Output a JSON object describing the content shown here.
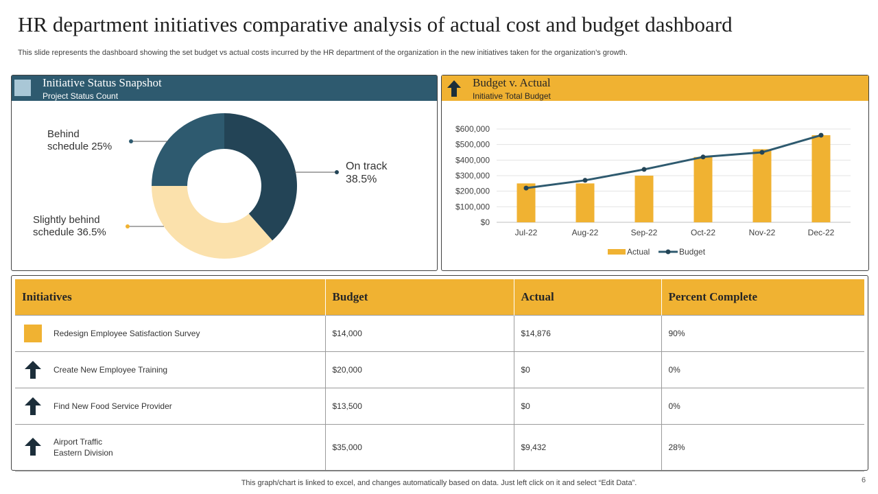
{
  "page": {
    "title": "HR department  initiatives  comparative  analysis  of actual cost and budget dashboard",
    "subtitle": "This slide represents the dashboard showing the set budget vs actual costs incurred by the HR department of the organization in the new initiatives taken for the organization’s growth.",
    "footer": "This graph/chart is linked to excel,  and changes automatically based on data. Just left click on it and select “Edit Data”.",
    "page_number": "6"
  },
  "left_panel": {
    "title": "Initiative  Status Snapshot",
    "subtitle": "Project Status Count",
    "labels": {
      "on_track_line1": "On track",
      "on_track_line2": "38.5%",
      "behind_line1": "Behind",
      "behind_line2": "schedule 25%",
      "slightly_line1": "Slightly behind",
      "slightly_line2": "schedule 36.5%"
    }
  },
  "right_panel": {
    "title": "Budget v. Actual",
    "subtitle": "Initiative Total Budget"
  },
  "colors": {
    "yellow": "#f0b232",
    "navy": "#234456",
    "teal": "#2e5a6f",
    "cream": "#fbe1ac",
    "dark_arrow": "#1c2e3a"
  },
  "chart_data": [
    {
      "type": "pie",
      "title": "Project Status Count",
      "categories": [
        "On track",
        "Slightly behind schedule",
        "Behind schedule"
      ],
      "values": [
        38.5,
        36.5,
        25
      ],
      "colors": [
        "#234456",
        "#fbe1ac",
        "#2e5a6f"
      ],
      "donut": true
    },
    {
      "type": "bar",
      "title": "Initiative Total Budget",
      "categories": [
        "Jul-22",
        "Aug-22",
        "Sep-22",
        "Oct-22",
        "Nov-22",
        "Dec-22"
      ],
      "series": [
        {
          "name": "Actual",
          "kind": "bar",
          "color": "#f0b232",
          "values": [
            250000,
            250000,
            300000,
            420000,
            470000,
            560000
          ]
        },
        {
          "name": "Budget",
          "kind": "line",
          "color": "#2e5a6f",
          "values": [
            220000,
            270000,
            340000,
            420000,
            450000,
            560000
          ]
        }
      ],
      "ylim": [
        0,
        600000
      ],
      "yticks": [
        0,
        100000,
        200000,
        300000,
        400000,
        500000,
        600000
      ],
      "ytick_labels": [
        "$0",
        "$100,000",
        "$200,000",
        "$300,000",
        "$400,000",
        "$500,000",
        "$600,000"
      ],
      "legend": "bottom",
      "grid": true
    }
  ],
  "table": {
    "headers": [
      "Initiatives",
      "Budget",
      "Actual",
      "Percent Complete"
    ],
    "rows": [
      {
        "icon": "square-icon",
        "initiative": [
          "Redesign  Employee Satisfaction Survey"
        ],
        "budget": "$14,000",
        "actual": "$14,876",
        "percent": "90%"
      },
      {
        "icon": "up-arrow-icon",
        "initiative": [
          "Create  New  Employee Training"
        ],
        "budget": "$20,000",
        "actual": "$0",
        "percent": "0%"
      },
      {
        "icon": "up-arrow-icon",
        "initiative": [
          "Find  New  Food  Service  Provider"
        ],
        "budget": "$13,500",
        "actual": "$0",
        "percent": "0%"
      },
      {
        "icon": "up-arrow-icon",
        "initiative": [
          "Airport  Traffic",
          "Eastern  Division"
        ],
        "budget": "$35,000",
        "actual": "$9,432",
        "percent": "28%"
      }
    ]
  }
}
